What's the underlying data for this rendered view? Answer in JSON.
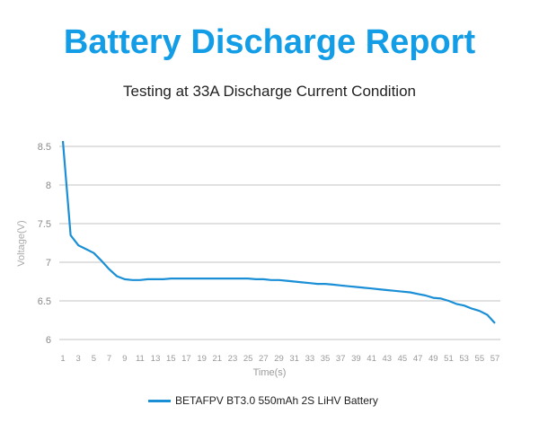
{
  "chart_data": {
    "type": "line",
    "title": "Battery Discharge Report",
    "subtitle": "Testing at 33A Discharge Current Condition",
    "xlabel": "Time(s)",
    "ylabel": "Voltage(V)",
    "xlim": [
      1,
      57
    ],
    "ylim": [
      6,
      8.5
    ],
    "yticks": [
      "6",
      "6.5",
      "7",
      "7.5",
      "8",
      "8.5"
    ],
    "xticks": [
      "1",
      "3",
      "5",
      "7",
      "9",
      "11",
      "13",
      "15",
      "17",
      "19",
      "21",
      "23",
      "25",
      "27",
      "29",
      "31",
      "33",
      "35",
      "37",
      "39",
      "41",
      "43",
      "45",
      "47",
      "49",
      "51",
      "53",
      "55",
      "57"
    ],
    "grid": "horizontal",
    "legend_position": "bottom",
    "series": [
      {
        "name": "BETAFPV BT3.0 550mAh 2S LiHV Battery",
        "color": "#1a8fd6",
        "x": [
          1,
          2,
          3,
          4,
          5,
          6,
          7,
          8,
          9,
          10,
          11,
          12,
          13,
          14,
          15,
          16,
          17,
          18,
          19,
          20,
          21,
          22,
          23,
          24,
          25,
          26,
          27,
          28,
          29,
          30,
          31,
          32,
          33,
          34,
          35,
          36,
          37,
          38,
          39,
          40,
          41,
          42,
          43,
          44,
          45,
          46,
          47,
          48,
          49,
          50,
          51,
          52,
          53,
          54,
          55,
          56,
          57
        ],
        "values": [
          8.57,
          7.35,
          7.22,
          7.17,
          7.12,
          7.02,
          6.91,
          6.82,
          6.78,
          6.77,
          6.77,
          6.78,
          6.78,
          6.78,
          6.79,
          6.79,
          6.79,
          6.79,
          6.79,
          6.79,
          6.79,
          6.79,
          6.79,
          6.79,
          6.79,
          6.78,
          6.78,
          6.77,
          6.77,
          6.76,
          6.75,
          6.74,
          6.73,
          6.72,
          6.72,
          6.71,
          6.7,
          6.69,
          6.68,
          6.67,
          6.66,
          6.65,
          6.64,
          6.63,
          6.62,
          6.61,
          6.59,
          6.57,
          6.54,
          6.53,
          6.5,
          6.46,
          6.44,
          6.4,
          6.37,
          6.32,
          6.21
        ]
      }
    ]
  }
}
